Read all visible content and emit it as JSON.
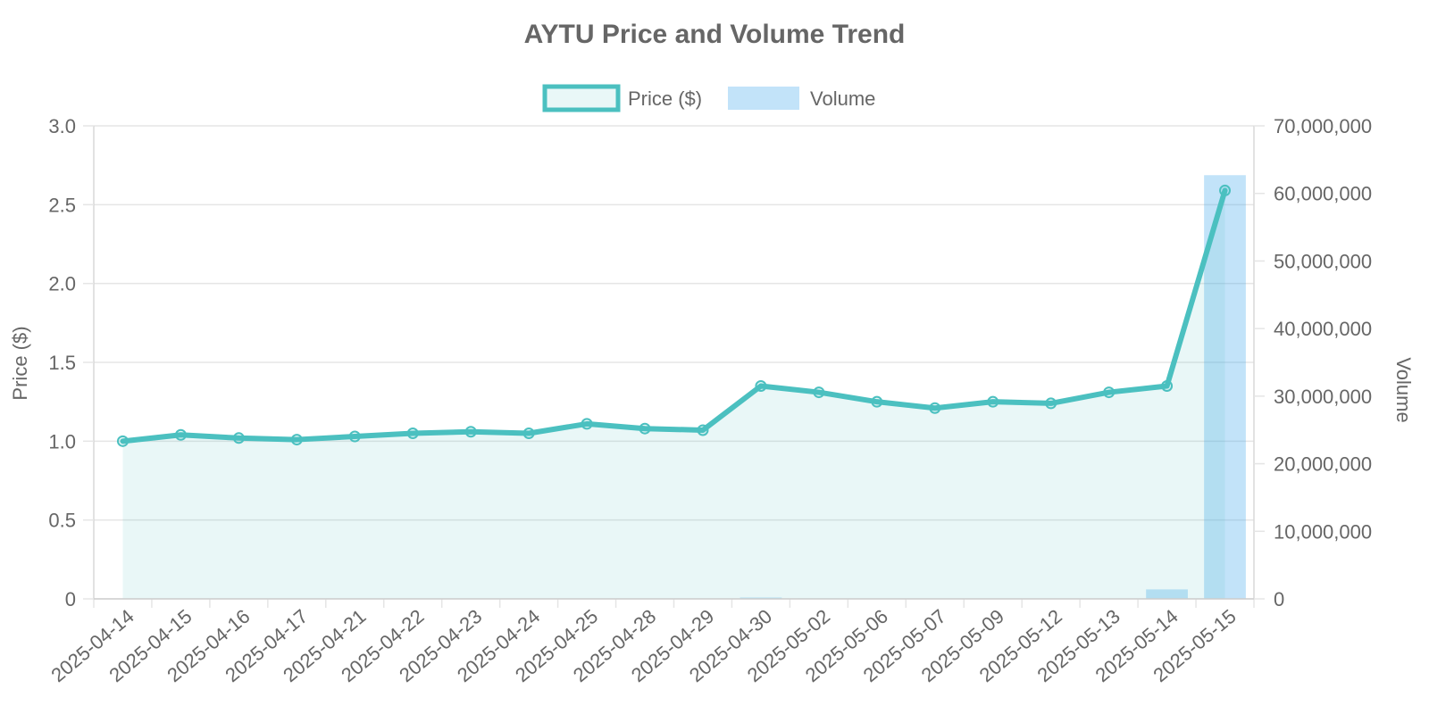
{
  "chart_data": {
    "type": "line",
    "title": "AYTU Price and Volume Trend",
    "categories": [
      "2025-04-14",
      "2025-04-15",
      "2025-04-16",
      "2025-04-17",
      "2025-04-21",
      "2025-04-22",
      "2025-04-23",
      "2025-04-24",
      "2025-04-25",
      "2025-04-28",
      "2025-04-29",
      "2025-04-30",
      "2025-05-02",
      "2025-05-06",
      "2025-05-07",
      "2025-05-09",
      "2025-05-12",
      "2025-05-13",
      "2025-05-14",
      "2025-05-15"
    ],
    "series": [
      {
        "name": "Price ($)",
        "type": "line",
        "axis": "left",
        "fill": true,
        "values": [
          1.0,
          1.04,
          1.02,
          1.01,
          1.03,
          1.05,
          1.06,
          1.05,
          1.11,
          1.08,
          1.07,
          1.35,
          1.31,
          1.25,
          1.21,
          1.25,
          1.24,
          1.31,
          1.35,
          2.59
        ]
      },
      {
        "name": "Volume",
        "type": "bar",
        "axis": "right",
        "values": [
          30000,
          40000,
          25000,
          20000,
          25000,
          30000,
          20000,
          20000,
          60000,
          40000,
          50000,
          200000,
          80000,
          60000,
          50000,
          40000,
          40000,
          60000,
          1400000,
          62700000
        ]
      }
    ],
    "y_left": {
      "label": "Price ($)",
      "ylim": [
        0,
        3.0
      ],
      "ticks": [
        "0",
        "0.5",
        "1.0",
        "1.5",
        "2.0",
        "2.5",
        "3.0"
      ]
    },
    "y_right": {
      "label": "Volume",
      "ylim": [
        0,
        70000000
      ],
      "ticks": [
        "0",
        "10,000,000",
        "20,000,000",
        "30,000,000",
        "40,000,000",
        "50,000,000",
        "60,000,000",
        "70,000,000"
      ]
    },
    "legend": {
      "placement": "top-center"
    },
    "grid": true,
    "colors": {
      "price_line": "#4bc0c0",
      "price_fill": "rgba(75,192,192,0.12)",
      "volume_bar": "rgba(54,162,235,0.3)",
      "text": "#666666",
      "grid": "#e5e5e5"
    }
  }
}
